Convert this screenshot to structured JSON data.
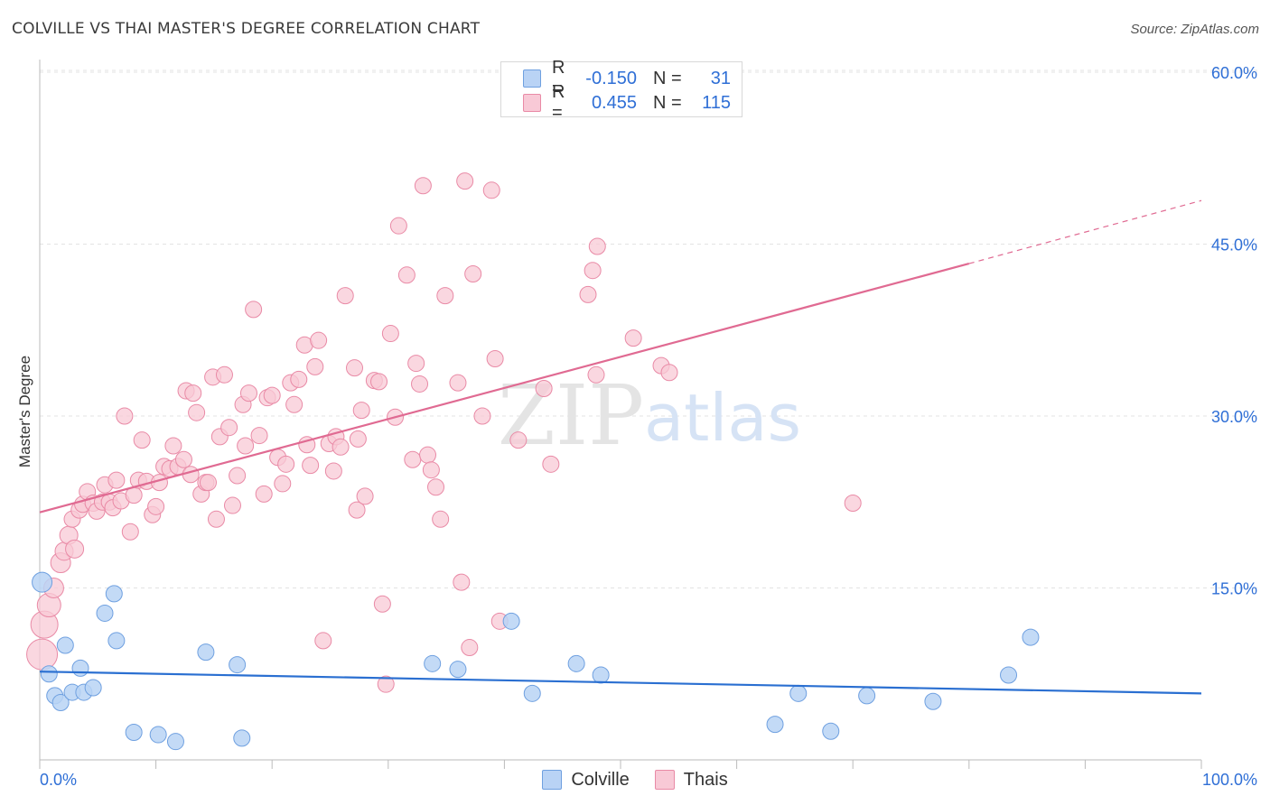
{
  "title": "COLVILLE VS THAI MASTER'S DEGREE CORRELATION CHART",
  "source": "Source: ZipAtlas.com",
  "watermark": {
    "zip": "ZIP",
    "atlas": "atlas"
  },
  "colors": {
    "colville_fill": "#b9d3f5",
    "colville_stroke": "#6fa0e0",
    "colville_line": "#2a6fd1",
    "thai_fill": "#f8c9d6",
    "thai_stroke": "#e98aa6",
    "thai_line": "#e06a92",
    "value_text": "#2f6fd6",
    "grid": "#e3e3e3"
  },
  "legend_top": [
    {
      "r_label": "R =",
      "r_value": "-0.150",
      "n_label": "N =",
      "n_value": "31"
    },
    {
      "r_label": "R =",
      "r_value": "0.455",
      "n_label": "N =",
      "n_value": "115"
    }
  ],
  "legend_bottom": [
    "Colville",
    "Thais"
  ],
  "chart_data": {
    "type": "scatter",
    "title": "COLVILLE VS THAI MASTER'S DEGREE CORRELATION CHART",
    "xlabel": "",
    "ylabel": "Master's Degree",
    "xlim": [
      0,
      100
    ],
    "ylim": [
      0,
      60
    ],
    "x_tick_labels": [
      "0.0%",
      "100.0%"
    ],
    "y_ticks": [
      15,
      30,
      45,
      60
    ],
    "y_tick_labels": [
      "15.0%",
      "30.0%",
      "45.0%",
      "60.0%"
    ],
    "grid": true,
    "legend": "bottom-center",
    "series": [
      {
        "name": "Colville",
        "r": -0.15,
        "n": 31,
        "trend": {
          "x": [
            0,
            100
          ],
          "y": [
            7.7,
            5.8
          ]
        },
        "points": [
          [
            0.2,
            15.5,
            11
          ],
          [
            0.8,
            7.5,
            9
          ],
          [
            1.3,
            5.6,
            9
          ],
          [
            1.8,
            5.0,
            9
          ],
          [
            2.2,
            10.0,
            9
          ],
          [
            2.8,
            5.9,
            9
          ],
          [
            3.5,
            8.0,
            9
          ],
          [
            3.8,
            5.9,
            9
          ],
          [
            4.6,
            6.3,
            9
          ],
          [
            5.6,
            12.8,
            9
          ],
          [
            6.4,
            14.5,
            9
          ],
          [
            6.6,
            10.4,
            9
          ],
          [
            8.1,
            2.4,
            9
          ],
          [
            10.2,
            2.2,
            9
          ],
          [
            11.7,
            1.6,
            9
          ],
          [
            14.3,
            9.4,
            9
          ],
          [
            17.0,
            8.3,
            9
          ],
          [
            17.4,
            1.9,
            9
          ],
          [
            33.8,
            8.4,
            9
          ],
          [
            36.0,
            7.9,
            9
          ],
          [
            40.6,
            12.1,
            9
          ],
          [
            42.4,
            5.8,
            9
          ],
          [
            46.2,
            8.4,
            9
          ],
          [
            48.3,
            7.4,
            9
          ],
          [
            63.3,
            3.1,
            9
          ],
          [
            65.3,
            5.8,
            9
          ],
          [
            68.1,
            2.5,
            9
          ],
          [
            71.2,
            5.6,
            9
          ],
          [
            76.9,
            5.1,
            9
          ],
          [
            83.4,
            7.4,
            9
          ],
          [
            85.3,
            10.7,
            9
          ]
        ]
      },
      {
        "name": "Thais",
        "r": 0.455,
        "n": 115,
        "trend": {
          "x": [
            0,
            80
          ],
          "y": [
            21.6,
            43.3
          ]
        },
        "trend_dashed": {
          "x": [
            80,
            100
          ],
          "y": [
            43.3,
            48.8
          ]
        },
        "points": [
          [
            0.2,
            9.2,
            17
          ],
          [
            0.4,
            11.8,
            15
          ],
          [
            0.8,
            13.5,
            13
          ],
          [
            1.2,
            15.0,
            11
          ],
          [
            1.8,
            17.2,
            11
          ],
          [
            2.1,
            18.2,
            10
          ],
          [
            2.5,
            19.6,
            10
          ],
          [
            2.8,
            21.0,
            9
          ],
          [
            3.0,
            18.4,
            10
          ],
          [
            3.4,
            21.8,
            9
          ],
          [
            3.7,
            22.3,
            9
          ],
          [
            4.1,
            23.4,
            9
          ],
          [
            4.6,
            22.4,
            9
          ],
          [
            4.9,
            21.7,
            9
          ],
          [
            5.4,
            22.5,
            9
          ],
          [
            5.6,
            24.0,
            9
          ],
          [
            6.0,
            22.5,
            9
          ],
          [
            6.3,
            22.0,
            9
          ],
          [
            6.6,
            24.4,
            9
          ],
          [
            7.0,
            22.6,
            9
          ],
          [
            7.3,
            30.0,
            9
          ],
          [
            7.8,
            19.9,
            9
          ],
          [
            8.1,
            23.1,
            9
          ],
          [
            8.5,
            24.4,
            9
          ],
          [
            8.8,
            27.9,
            9
          ],
          [
            9.2,
            24.3,
            9
          ],
          [
            9.7,
            21.4,
            9
          ],
          [
            10.0,
            22.1,
            9
          ],
          [
            10.3,
            24.2,
            9
          ],
          [
            10.7,
            25.6,
            9
          ],
          [
            11.2,
            25.4,
            9
          ],
          [
            11.5,
            27.4,
            9
          ],
          [
            11.9,
            25.6,
            9
          ],
          [
            12.4,
            26.2,
            9
          ],
          [
            12.6,
            32.2,
            9
          ],
          [
            13.0,
            24.9,
            9
          ],
          [
            13.2,
            32.0,
            9
          ],
          [
            13.5,
            30.3,
            9
          ],
          [
            13.9,
            23.2,
            9
          ],
          [
            14.3,
            24.2,
            9
          ],
          [
            14.5,
            24.2,
            9
          ],
          [
            14.9,
            33.4,
            9
          ],
          [
            15.2,
            21.0,
            9
          ],
          [
            15.5,
            28.2,
            9
          ],
          [
            15.9,
            33.6,
            9
          ],
          [
            16.3,
            29.0,
            9
          ],
          [
            16.6,
            22.2,
            9
          ],
          [
            17.0,
            24.8,
            9
          ],
          [
            17.5,
            31.0,
            9
          ],
          [
            17.7,
            27.4,
            9
          ],
          [
            18.0,
            32.0,
            9
          ],
          [
            18.4,
            39.3,
            9
          ],
          [
            18.9,
            28.3,
            9
          ],
          [
            19.3,
            23.2,
            9
          ],
          [
            19.6,
            31.6,
            9
          ],
          [
            20.0,
            31.8,
            9
          ],
          [
            20.5,
            26.4,
            9
          ],
          [
            20.9,
            24.1,
            9
          ],
          [
            21.2,
            25.8,
            9
          ],
          [
            21.6,
            32.9,
            9
          ],
          [
            21.9,
            31.0,
            9
          ],
          [
            22.3,
            33.2,
            9
          ],
          [
            22.8,
            36.2,
            9
          ],
          [
            23.0,
            27.5,
            9
          ],
          [
            23.3,
            25.7,
            9
          ],
          [
            23.7,
            34.3,
            9
          ],
          [
            24.0,
            36.6,
            9
          ],
          [
            24.4,
            10.4,
            9
          ],
          [
            24.9,
            27.6,
            9
          ],
          [
            25.3,
            25.2,
            9
          ],
          [
            25.5,
            28.2,
            9
          ],
          [
            25.9,
            27.3,
            9
          ],
          [
            26.3,
            40.5,
            9
          ],
          [
            27.1,
            34.2,
            9
          ],
          [
            27.3,
            21.8,
            9
          ],
          [
            27.7,
            30.5,
            9
          ],
          [
            28.0,
            23.0,
            9
          ],
          [
            28.8,
            33.1,
            9
          ],
          [
            29.2,
            33.0,
            9
          ],
          [
            29.5,
            13.6,
            9
          ],
          [
            29.8,
            6.6,
            9
          ],
          [
            30.2,
            37.2,
            9
          ],
          [
            30.6,
            29.9,
            9
          ],
          [
            30.9,
            46.6,
            9
          ],
          [
            31.6,
            42.3,
            9
          ],
          [
            32.1,
            26.2,
            9
          ],
          [
            32.4,
            34.6,
            9
          ],
          [
            32.7,
            32.8,
            9
          ],
          [
            33.0,
            50.1,
            9
          ],
          [
            33.4,
            26.6,
            9
          ],
          [
            33.7,
            25.3,
            9
          ],
          [
            34.1,
            23.8,
            9
          ],
          [
            34.5,
            21.0,
            9
          ],
          [
            34.9,
            40.5,
            9
          ],
          [
            36.0,
            32.9,
            9
          ],
          [
            36.3,
            15.5,
            9
          ],
          [
            36.6,
            50.5,
            9
          ],
          [
            37.0,
            9.8,
            9
          ],
          [
            37.3,
            42.4,
            9
          ],
          [
            38.1,
            30.0,
            9
          ],
          [
            38.9,
            49.7,
            9
          ],
          [
            39.2,
            35.0,
            9
          ],
          [
            39.6,
            12.1,
            9
          ],
          [
            41.2,
            27.9,
            9
          ],
          [
            43.4,
            32.4,
            9
          ],
          [
            44.0,
            25.8,
            9
          ],
          [
            47.2,
            40.6,
            9
          ],
          [
            47.6,
            42.7,
            9
          ],
          [
            47.9,
            33.6,
            9
          ],
          [
            48.0,
            44.8,
            9
          ],
          [
            51.1,
            36.8,
            9
          ],
          [
            53.5,
            34.4,
            9
          ],
          [
            54.2,
            33.8,
            9
          ],
          [
            70.0,
            22.4,
            9
          ],
          [
            27.4,
            28.0,
            9
          ]
        ]
      }
    ]
  }
}
